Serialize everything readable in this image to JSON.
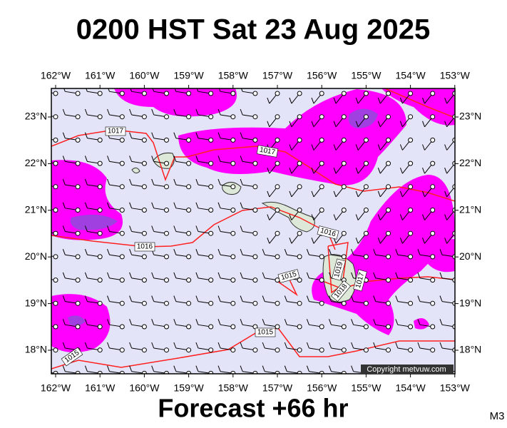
{
  "title": "0200 HST Sat 23 Aug 2025",
  "footer": "Forecast +66 hr",
  "model": "M3",
  "copyright": "Copyright metvuw.com",
  "longitude_labels": [
    "162°W",
    "161°W",
    "160°W",
    "159°W",
    "158°W",
    "157°W",
    "156°W",
    "155°W",
    "154°W",
    "153°W"
  ],
  "latitude_labels": [
    "23°N",
    "22°N",
    "21°N",
    "20°N",
    "19°N",
    "18°N"
  ],
  "isobar_labels": [
    "1017",
    "1017",
    "1016",
    "1016",
    "1015",
    "1015",
    "1015",
    "1019",
    "1018",
    "1017"
  ]
}
